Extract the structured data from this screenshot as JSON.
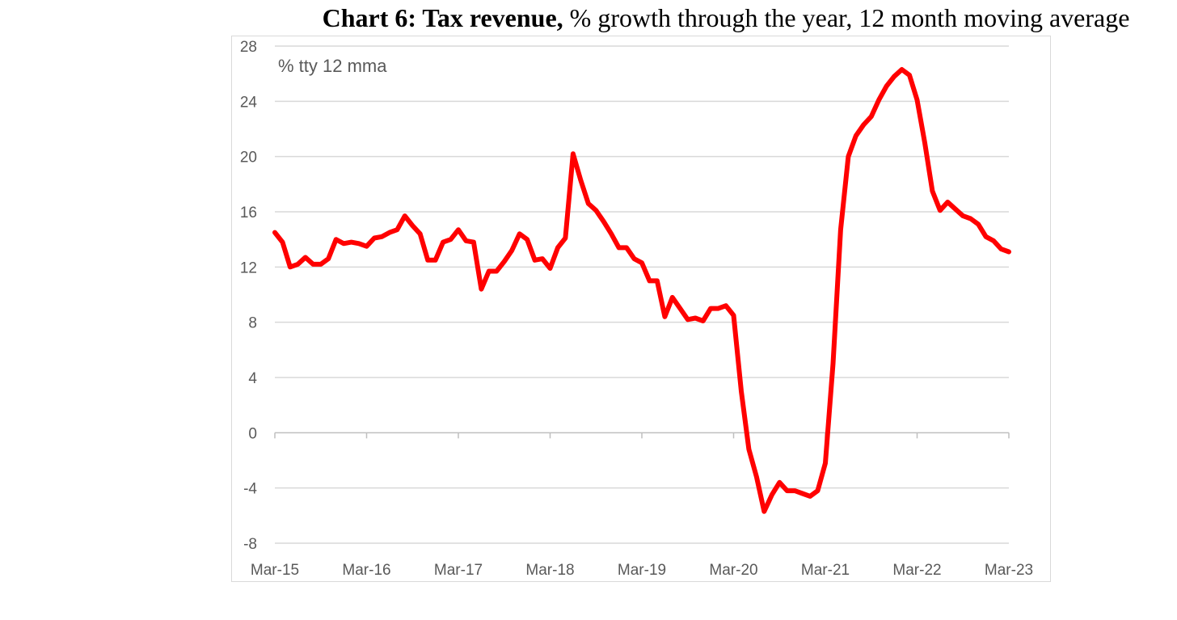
{
  "title": {
    "bold": "Chart 6: Tax revenue,",
    "rest": " % growth through the year, 12 month moving average"
  },
  "chart_data": {
    "type": "line",
    "annotation": "% tty 12 mma",
    "ylim": [
      -8,
      28
    ],
    "yticks": [
      -8,
      -4,
      0,
      4,
      8,
      12,
      16,
      20,
      24,
      28
    ],
    "xtick_labels": [
      "Mar-15",
      "Mar-16",
      "Mar-17",
      "Mar-18",
      "Mar-19",
      "Mar-20",
      "Mar-21",
      "Mar-22",
      "Mar-23"
    ],
    "grid": true,
    "line_color": "#ff0000",
    "series": [
      {
        "values": [
          14.5,
          13.8,
          12.0,
          12.2,
          12.7,
          12.2,
          12.2,
          12.6,
          14.0,
          13.7,
          13.8,
          13.7,
          13.5,
          14.1,
          14.2,
          14.5,
          14.7,
          15.7,
          15.0,
          14.4,
          12.5,
          12.5,
          13.8,
          14.0,
          14.7,
          13.9,
          13.8,
          10.4,
          11.7,
          11.7,
          12.4,
          13.2,
          14.4,
          14.0,
          12.5,
          12.6,
          11.9,
          13.4,
          14.1,
          20.2,
          18.3,
          16.6,
          16.1,
          15.3,
          14.4,
          13.4,
          13.4,
          12.6,
          12.3,
          11.0,
          11.0,
          8.4,
          9.8,
          9.0,
          8.2,
          8.3,
          8.1,
          9.0,
          9.0,
          9.2,
          8.5,
          3.0,
          -1.2,
          -3.2,
          -5.7,
          -4.5,
          -3.6,
          -4.2,
          -4.2,
          -4.4,
          -4.6,
          -4.2,
          -2.2,
          5.0,
          14.7,
          20.0,
          21.5,
          22.3,
          22.9,
          24.1,
          25.1,
          25.8,
          26.3,
          25.9,
          24.1,
          21.0,
          17.5,
          16.1,
          16.7,
          16.2,
          15.7,
          15.5,
          15.1,
          14.2,
          13.9,
          13.3,
          13.1
        ]
      }
    ]
  }
}
